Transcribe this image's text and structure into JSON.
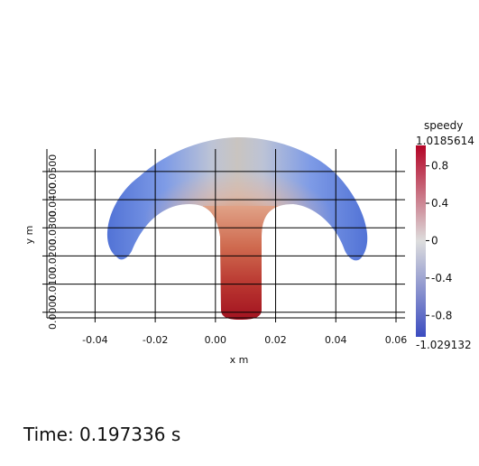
{
  "chart_data": {
    "type": "heatmap",
    "field": "speedy",
    "xlabel": "x m",
    "ylabel": "y m",
    "xlim": [
      -0.056,
      0.063
    ],
    "ylim": [
      -0.002,
      0.058
    ],
    "x_ticks": [
      -0.04,
      -0.02,
      0.0,
      0.02,
      0.04,
      0.06
    ],
    "x_tick_labels": [
      "-0.04",
      "-0.02",
      "0.00",
      "0.02",
      "0.04",
      "0.06"
    ],
    "y_ticks": [
      0.0,
      0.01,
      0.02,
      0.03,
      0.04,
      0.05
    ],
    "y_tick_labels": [
      "0.0000",
      "0.0100",
      "0.0200",
      "0.0300",
      "0.0400",
      "0.0500"
    ],
    "grid": true,
    "colorbar": {
      "title": "speedy",
      "min": -1.029132,
      "max": 1.0185614,
      "min_label": "-1.029132",
      "max_label": "1.0185614",
      "ticks": [
        0.8,
        0.4,
        0,
        -0.4,
        -0.8
      ],
      "tick_labels": [
        "0.8",
        "0.4",
        "0",
        "-0.4",
        "-0.8"
      ],
      "colormap": "cool-to-warm",
      "color_low": "#3b4cc0",
      "color_mid": "#dddddd",
      "color_high": "#b40426",
      "placement": "right"
    }
  },
  "time_label": "Time: 0.197336 s"
}
